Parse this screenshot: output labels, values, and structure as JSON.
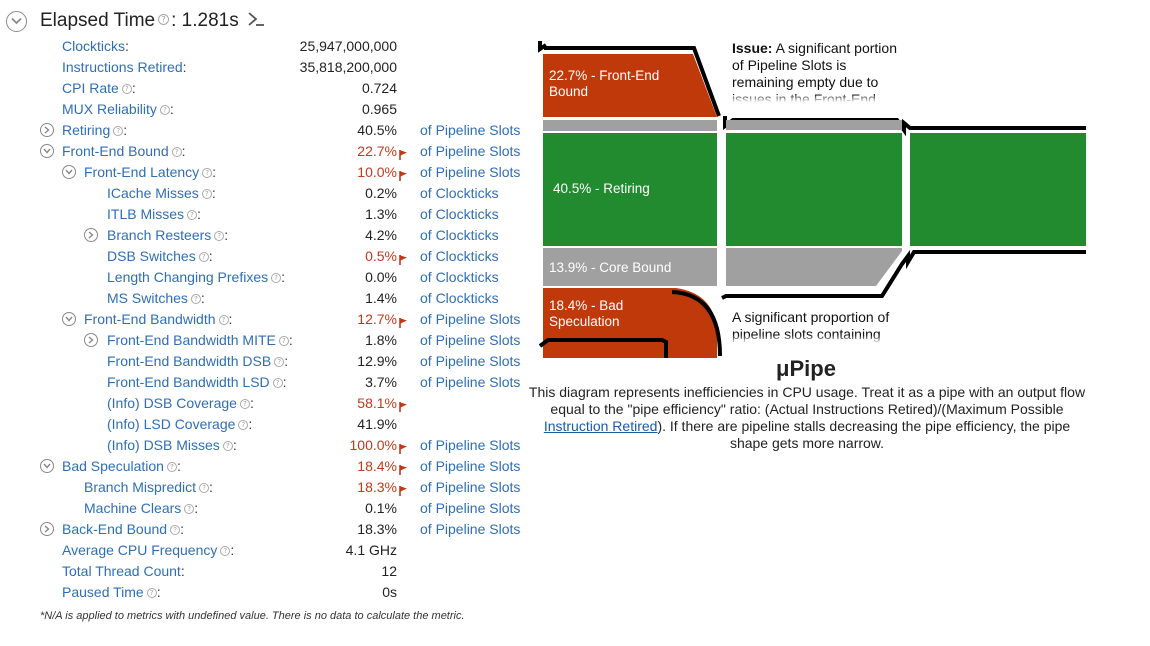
{
  "header": {
    "title": "Elapsed Time",
    "value": ": 1.281s"
  },
  "metrics": [
    {
      "id": "clockticks",
      "indent": 0,
      "label": "Clockticks",
      "help": false,
      "value": "25,947,000,000",
      "bad": false,
      "unit": ""
    },
    {
      "id": "instructions-retired",
      "indent": 0,
      "label": "Instructions Retired",
      "help": false,
      "value": "35,818,200,000",
      "bad": false,
      "unit": ""
    },
    {
      "id": "cpi-rate",
      "indent": 0,
      "label": "CPI Rate",
      "help": true,
      "value": "0.724",
      "bad": false,
      "unit": ""
    },
    {
      "id": "mux-reliability",
      "indent": 0,
      "label": "MUX Reliability",
      "help": true,
      "value": "0.965",
      "bad": false,
      "unit": ""
    },
    {
      "id": "retiring",
      "indent": 0,
      "toggle": "right",
      "label": "Retiring",
      "help": true,
      "value": "40.5%",
      "bad": false,
      "unit": "of Pipeline Slots"
    },
    {
      "id": "front-end-bound",
      "indent": 0,
      "toggle": "down",
      "label": "Front-End Bound",
      "help": true,
      "value": "22.7%",
      "bad": true,
      "unit": "of Pipeline Slots"
    },
    {
      "id": "front-end-latency",
      "indent": 1,
      "toggle": "down",
      "label": "Front-End Latency",
      "help": true,
      "value": "10.0%",
      "bad": true,
      "unit": "of Pipeline Slots"
    },
    {
      "id": "icache-misses",
      "indent": 2,
      "label": "ICache Misses",
      "help": true,
      "value": "0.2%",
      "bad": false,
      "unit": "of Clockticks"
    },
    {
      "id": "itlb-misses",
      "indent": 2,
      "label": "ITLB Misses",
      "help": true,
      "value": "1.3%",
      "bad": false,
      "unit": "of Clockticks"
    },
    {
      "id": "branch-resteers",
      "indent": 2,
      "toggle": "right",
      "label": "Branch Resteers",
      "help": true,
      "value": "4.2%",
      "bad": false,
      "unit": "of Clockticks"
    },
    {
      "id": "dsb-switches",
      "indent": 2,
      "label": "DSB Switches",
      "help": true,
      "value": "0.5%",
      "bad": true,
      "unit": "of Clockticks"
    },
    {
      "id": "length-changing-prefixes",
      "indent": 2,
      "label": "Length Changing Prefixes",
      "help": true,
      "value": "0.0%",
      "bad": false,
      "unit": "of Clockticks"
    },
    {
      "id": "ms-switches",
      "indent": 2,
      "label": "MS Switches",
      "help": true,
      "value": "1.4%",
      "bad": false,
      "unit": "of Clockticks"
    },
    {
      "id": "front-end-bandwidth",
      "indent": 1,
      "toggle": "down",
      "label": "Front-End Bandwidth",
      "help": true,
      "value": "12.7%",
      "bad": true,
      "unit": "of Pipeline Slots"
    },
    {
      "id": "front-end-bandwidth-mite",
      "indent": 2,
      "toggle": "right",
      "label": "Front-End Bandwidth MITE",
      "help": true,
      "value": "1.8%",
      "bad": false,
      "unit": "of Pipeline Slots"
    },
    {
      "id": "front-end-bandwidth-dsb",
      "indent": 2,
      "label": "Front-End Bandwidth DSB",
      "help": true,
      "value": "12.9%",
      "bad": false,
      "unit": "of Pipeline Slots"
    },
    {
      "id": "front-end-bandwidth-lsd",
      "indent": 2,
      "label": "Front-End Bandwidth LSD",
      "help": true,
      "value": "3.7%",
      "bad": false,
      "unit": "of Pipeline Slots"
    },
    {
      "id": "info-dsb-coverage",
      "indent": 2,
      "label": "(Info) DSB Coverage",
      "help": true,
      "value": "58.1%",
      "bad": true,
      "unit": ""
    },
    {
      "id": "info-lsd-coverage",
      "indent": 2,
      "label": "(Info) LSD Coverage",
      "help": true,
      "value": "41.9%",
      "bad": false,
      "unit": ""
    },
    {
      "id": "info-dsb-misses",
      "indent": 2,
      "label": "(Info) DSB Misses",
      "help": true,
      "value": "100.0%",
      "bad": true,
      "unit": "of Pipeline Slots"
    },
    {
      "id": "bad-speculation",
      "indent": 0,
      "toggle": "down",
      "label": "Bad Speculation",
      "help": true,
      "value": "18.4%",
      "bad": true,
      "unit": "of Pipeline Slots"
    },
    {
      "id": "branch-mispredict",
      "indent": 1,
      "label": "Branch Mispredict",
      "help": true,
      "value": "18.3%",
      "bad": true,
      "unit": "of Pipeline Slots"
    },
    {
      "id": "machine-clears",
      "indent": 1,
      "label": "Machine Clears",
      "help": true,
      "value": "0.1%",
      "bad": false,
      "unit": "of Pipeline Slots"
    },
    {
      "id": "back-end-bound",
      "indent": 0,
      "toggle": "right",
      "label": "Back-End Bound",
      "help": true,
      "value": "18.3%",
      "bad": false,
      "unit": "of Pipeline Slots"
    },
    {
      "id": "average-cpu-frequency",
      "indent": 0,
      "label": "Average CPU Frequency",
      "help": true,
      "value": "4.1 GHz",
      "bad": false,
      "unit": ""
    },
    {
      "id": "total-thread-count",
      "indent": 0,
      "label": "Total Thread Count",
      "help": false,
      "value": "12",
      "bad": false,
      "unit": ""
    },
    {
      "id": "paused-time",
      "indent": 0,
      "label": "Paused Time",
      "help": true,
      "value": "0s",
      "bad": false,
      "unit": ""
    }
  ],
  "footnote": "*N/A is applied to metrics with undefined value. There is no data to calculate the metric.",
  "pipe": {
    "front_end_label": "22.7% - Front-End Bound",
    "retiring_label": "40.5% - Retiring",
    "core_bound_label": "13.9% - Core Bound",
    "bad_spec_label": "18.4% - Bad Speculation",
    "issue1_bold": "Issue:",
    "issue1_text": " A significant portion of Pipeline Slots is remaining empty due to issues in the Front-End.",
    "issue2_text": "A significant proportion of pipeline slots containing useful work are being cancelled.",
    "colors": {
      "front_end": "#c0390a",
      "retiring": "#228b2f",
      "core": "#9a9a9a",
      "bad_spec": "#c0390a"
    }
  },
  "upipe": {
    "title": "μPipe",
    "desc_before": "This diagram represents inefficiencies in CPU usage. Treat it as a pipe with an output flow equal to the \"pipe efficiency\" ratio: (Actual Instructions Retired)/(Maximum Possible ",
    "desc_link": "Instruction Retired",
    "desc_after": "). If there are pipeline stalls decreasing the pipe efficiency, the pipe shape gets more narrow."
  }
}
